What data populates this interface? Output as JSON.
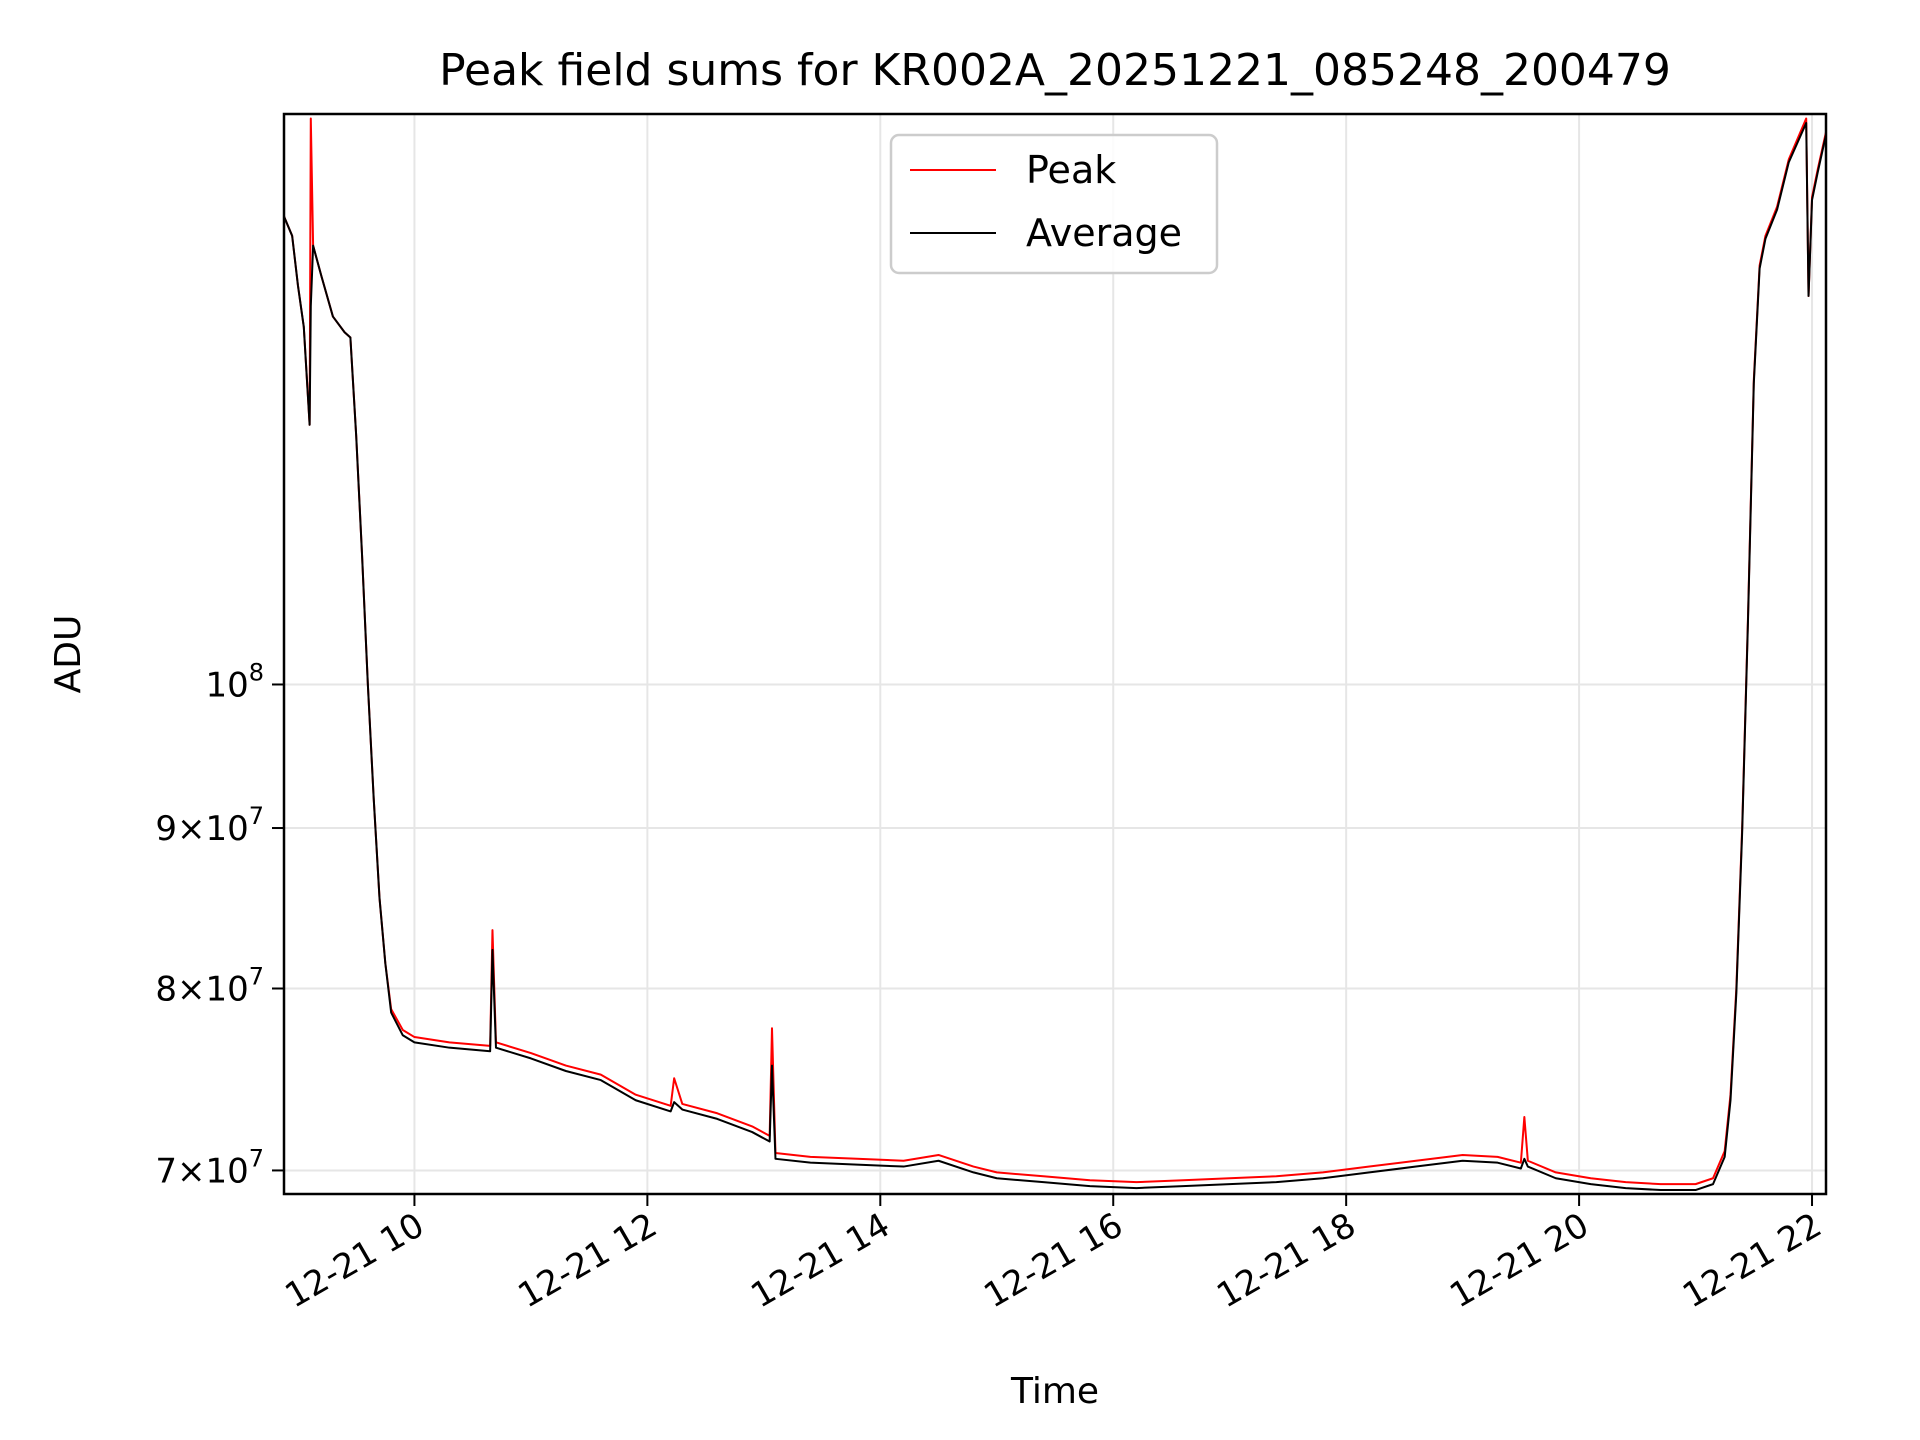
{
  "chart_data": {
    "type": "line",
    "title": "Peak field sums for KR002A_20251221_085248_200479",
    "xlabel": "Time",
    "ylabel": "ADU",
    "yscale": "log",
    "xlim": [
      8.88,
      22.12
    ],
    "ylim": [
      68800000,
      152000000
    ],
    "grid": true,
    "legend_position": "upper-center",
    "x_ticks": [
      {
        "value": 10,
        "label": "12-21 10"
      },
      {
        "value": 12,
        "label": "12-21 12"
      },
      {
        "value": 14,
        "label": "12-21 14"
      },
      {
        "value": 16,
        "label": "12-21 16"
      },
      {
        "value": 18,
        "label": "12-21 18"
      },
      {
        "value": 20,
        "label": "12-21 20"
      },
      {
        "value": 22,
        "label": "12-21 22"
      }
    ],
    "y_ticks": [
      {
        "value": 70000000,
        "mantissa": "7",
        "times": "×",
        "base": "10",
        "exp": "7"
      },
      {
        "value": 80000000,
        "mantissa": "8",
        "times": "×",
        "base": "10",
        "exp": "7"
      },
      {
        "value": 90000000,
        "mantissa": "9",
        "times": "×",
        "base": "10",
        "exp": "7"
      },
      {
        "value": 100000000,
        "mantissa": "",
        "times": "",
        "base": "10",
        "exp": "8"
      }
    ],
    "series": [
      {
        "name": "Peak",
        "color": "#ff0000",
        "points": [
          [
            8.88,
            141000000
          ],
          [
            8.95,
            139000000
          ],
          [
            9.0,
            134000000
          ],
          [
            9.05,
            130000000
          ],
          [
            9.1,
            121000000
          ],
          [
            9.11,
            151500000
          ],
          [
            9.13,
            138000000
          ],
          [
            9.2,
            135000000
          ],
          [
            9.3,
            131000000
          ],
          [
            9.4,
            129500000
          ],
          [
            9.45,
            129000000
          ],
          [
            9.5,
            120000000
          ],
          [
            9.55,
            110000000
          ],
          [
            9.6,
            100000000
          ],
          [
            9.65,
            92000000
          ],
          [
            9.7,
            85500000
          ],
          [
            9.75,
            81500000
          ],
          [
            9.8,
            78800000
          ],
          [
            9.9,
            77600000
          ],
          [
            10.0,
            77200000
          ],
          [
            10.3,
            76900000
          ],
          [
            10.65,
            76700000
          ],
          [
            10.67,
            83500000
          ],
          [
            10.7,
            76900000
          ],
          [
            11.0,
            76300000
          ],
          [
            11.3,
            75600000
          ],
          [
            11.6,
            75100000
          ],
          [
            11.9,
            74000000
          ],
          [
            12.2,
            73400000
          ],
          [
            12.23,
            74900000
          ],
          [
            12.3,
            73500000
          ],
          [
            12.6,
            73000000
          ],
          [
            12.9,
            72300000
          ],
          [
            13.05,
            71800000
          ],
          [
            13.07,
            77700000
          ],
          [
            13.1,
            70900000
          ],
          [
            13.4,
            70700000
          ],
          [
            13.8,
            70600000
          ],
          [
            14.2,
            70500000
          ],
          [
            14.5,
            70800000
          ],
          [
            14.8,
            70200000
          ],
          [
            15.0,
            69900000
          ],
          [
            15.4,
            69700000
          ],
          [
            15.8,
            69500000
          ],
          [
            16.2,
            69400000
          ],
          [
            16.6,
            69500000
          ],
          [
            17.0,
            69600000
          ],
          [
            17.4,
            69700000
          ],
          [
            17.8,
            69900000
          ],
          [
            18.2,
            70200000
          ],
          [
            18.6,
            70500000
          ],
          [
            19.0,
            70800000
          ],
          [
            19.3,
            70700000
          ],
          [
            19.5,
            70400000
          ],
          [
            19.53,
            72800000
          ],
          [
            19.56,
            70500000
          ],
          [
            19.8,
            69900000
          ],
          [
            20.1,
            69600000
          ],
          [
            20.4,
            69400000
          ],
          [
            20.7,
            69300000
          ],
          [
            21.0,
            69300000
          ],
          [
            21.15,
            69600000
          ],
          [
            21.25,
            71000000
          ],
          [
            21.3,
            74000000
          ],
          [
            21.35,
            80000000
          ],
          [
            21.4,
            90000000
          ],
          [
            21.45,
            105000000
          ],
          [
            21.5,
            125000000
          ],
          [
            21.55,
            136000000
          ],
          [
            21.6,
            139000000
          ],
          [
            21.7,
            142000000
          ],
          [
            21.8,
            147000000
          ],
          [
            21.95,
            151500000
          ],
          [
            21.97,
            133000000
          ],
          [
            22.0,
            143000000
          ],
          [
            22.05,
            146000000
          ],
          [
            22.12,
            150000000
          ]
        ]
      },
      {
        "name": "Average",
        "color": "#000000",
        "points": [
          [
            8.88,
            141000000
          ],
          [
            8.95,
            139000000
          ],
          [
            9.0,
            134000000
          ],
          [
            9.05,
            130000000
          ],
          [
            9.1,
            121000000
          ],
          [
            9.11,
            132000000
          ],
          [
            9.13,
            138000000
          ],
          [
            9.2,
            135000000
          ],
          [
            9.3,
            131000000
          ],
          [
            9.4,
            129500000
          ],
          [
            9.45,
            129000000
          ],
          [
            9.5,
            120000000
          ],
          [
            9.55,
            110000000
          ],
          [
            9.6,
            100000000
          ],
          [
            9.65,
            92000000
          ],
          [
            9.7,
            85500000
          ],
          [
            9.75,
            81500000
          ],
          [
            9.8,
            78600000
          ],
          [
            9.9,
            77300000
          ],
          [
            10.0,
            76900000
          ],
          [
            10.3,
            76600000
          ],
          [
            10.65,
            76400000
          ],
          [
            10.67,
            82300000
          ],
          [
            10.7,
            76600000
          ],
          [
            11.0,
            76000000
          ],
          [
            11.3,
            75300000
          ],
          [
            11.6,
            74800000
          ],
          [
            11.9,
            73700000
          ],
          [
            12.2,
            73100000
          ],
          [
            12.23,
            73600000
          ],
          [
            12.3,
            73200000
          ],
          [
            12.6,
            72700000
          ],
          [
            12.9,
            72000000
          ],
          [
            13.05,
            71500000
          ],
          [
            13.07,
            75600000
          ],
          [
            13.1,
            70600000
          ],
          [
            13.4,
            70400000
          ],
          [
            13.8,
            70300000
          ],
          [
            14.2,
            70200000
          ],
          [
            14.5,
            70500000
          ],
          [
            14.8,
            69900000
          ],
          [
            15.0,
            69600000
          ],
          [
            15.4,
            69400000
          ],
          [
            15.8,
            69200000
          ],
          [
            16.2,
            69100000
          ],
          [
            16.6,
            69200000
          ],
          [
            17.0,
            69300000
          ],
          [
            17.4,
            69400000
          ],
          [
            17.8,
            69600000
          ],
          [
            18.2,
            69900000
          ],
          [
            18.6,
            70200000
          ],
          [
            19.0,
            70500000
          ],
          [
            19.3,
            70400000
          ],
          [
            19.5,
            70100000
          ],
          [
            19.53,
            70600000
          ],
          [
            19.56,
            70200000
          ],
          [
            19.8,
            69600000
          ],
          [
            20.1,
            69300000
          ],
          [
            20.4,
            69100000
          ],
          [
            20.7,
            69000000
          ],
          [
            21.0,
            69000000
          ],
          [
            21.15,
            69300000
          ],
          [
            21.25,
            70700000
          ],
          [
            21.3,
            73700000
          ],
          [
            21.35,
            79700000
          ],
          [
            21.4,
            89700000
          ],
          [
            21.45,
            104700000
          ],
          [
            21.5,
            124700000
          ],
          [
            21.55,
            135700000
          ],
          [
            21.6,
            138700000
          ],
          [
            21.7,
            141700000
          ],
          [
            21.8,
            146700000
          ],
          [
            21.95,
            151000000
          ],
          [
            21.97,
            133000000
          ],
          [
            22.0,
            142700000
          ],
          [
            22.05,
            145700000
          ],
          [
            22.12,
            149700000
          ]
        ]
      }
    ]
  }
}
